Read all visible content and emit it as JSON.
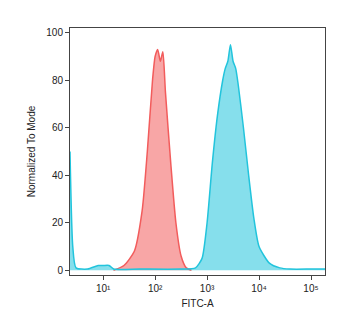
{
  "chart_data": {
    "type": "area",
    "x_label": "FITC-A",
    "y_label": "Normalized To Mode",
    "log": "x",
    "grid": false,
    "xlim": [
      2.3,
      186000
    ],
    "ylim": [
      -2,
      102
    ],
    "xticks": [
      {
        "value": 10,
        "label": "10¹"
      },
      {
        "value": 100,
        "label": "10²"
      },
      {
        "value": 1000,
        "label": "10³"
      },
      {
        "value": 10000,
        "label": "10⁴"
      },
      {
        "value": 100000,
        "label": "10⁵"
      }
    ],
    "yticks": [
      0,
      20,
      40,
      60,
      80,
      100
    ],
    "series": [
      {
        "color": "#f25c5c",
        "x": [
          15.8,
          25.1,
          39.8,
          56.2,
          70.8,
          89.1,
          100,
          112,
          126,
          141,
          158,
          200,
          251,
          316,
          398,
          501
        ],
        "values": [
          0,
          2,
          8,
          25,
          50,
          80,
          90,
          93,
          88,
          92,
          75,
          45,
          20,
          6,
          1,
          0
        ]
      },
      {
        "color": "#22c4dc",
        "x": [
          2.3,
          2.6,
          3,
          5,
          8,
          10,
          13,
          16,
          50,
          300,
          600,
          800,
          1000,
          1260,
          1580,
          2000,
          2240,
          2510,
          2820,
          3160,
          3550,
          3980,
          5010,
          6310,
          7940,
          10000,
          15800,
          25100,
          39800,
          100000,
          186000
        ],
        "values": [
          50,
          10,
          1,
          0.5,
          2,
          2,
          2,
          0.5,
          0.5,
          0.5,
          1,
          5,
          20,
          45,
          65,
          80,
          85,
          88,
          95,
          88,
          85,
          78,
          60,
          40,
          22,
          10,
          3,
          1,
          0.5,
          0.5,
          0.5
        ]
      }
    ]
  }
}
